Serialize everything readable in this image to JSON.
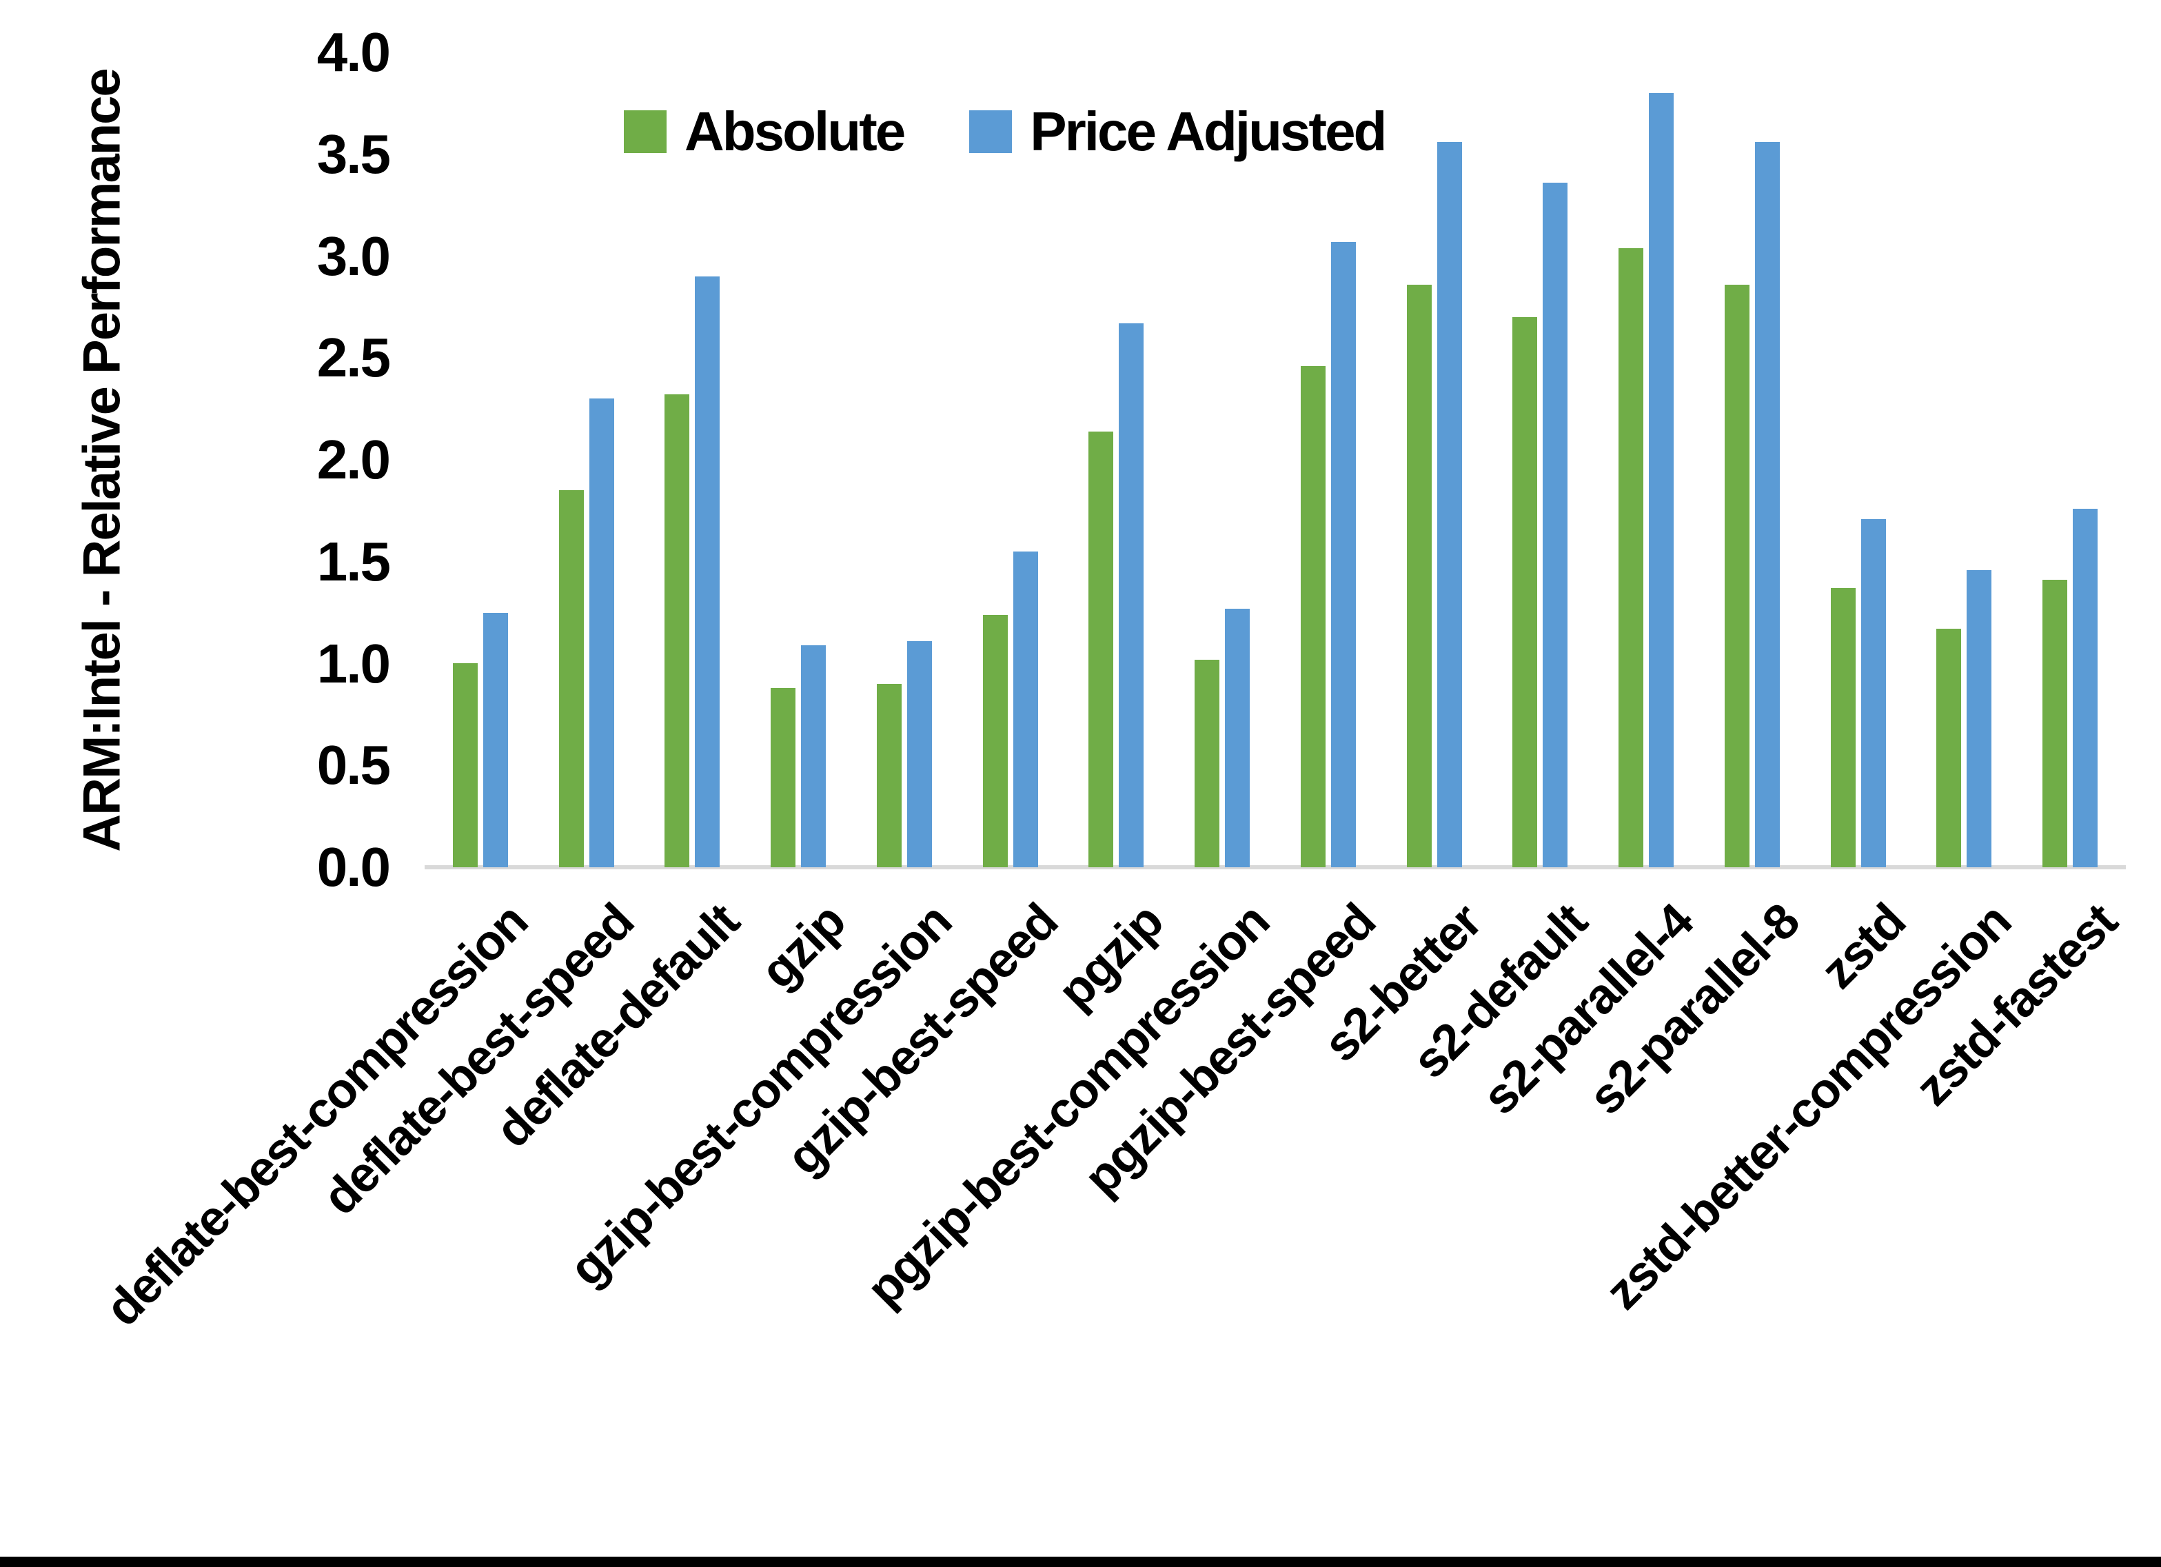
{
  "chart_data": {
    "type": "bar",
    "title": "",
    "xlabel": "",
    "ylabel": "ARM:Intel - Relative Performance",
    "ylim": [
      0.0,
      4.0
    ],
    "y_ticks": [
      "4.0",
      "3.5",
      "3.0",
      "2.5",
      "2.0",
      "1.5",
      "1.0",
      "0.5",
      "0.0"
    ],
    "grid": false,
    "legend_position": "top-center",
    "categories": [
      "deflate-best-compression",
      "deflate-best-speed",
      "deflate-default",
      "gzip",
      "gzip-best-compression",
      "gzip-best-speed",
      "pgzip",
      "pgzip-best-compression",
      "pgzip-best-speed",
      "s2-better",
      "s2-default",
      "s2-parallel-4",
      "s2-parallel-8",
      "zstd",
      "zstd-better-compression",
      "zstd-fastest"
    ],
    "series": [
      {
        "name": "Absolute",
        "color": "#70AD47",
        "values": [
          1.0,
          1.85,
          2.32,
          0.88,
          0.9,
          1.24,
          2.14,
          1.02,
          2.46,
          2.86,
          2.7,
          3.04,
          2.86,
          1.37,
          1.17,
          1.41
        ]
      },
      {
        "name": "Price Adjusted",
        "color": "#5B9BD5",
        "values": [
          1.25,
          2.3,
          2.9,
          1.09,
          1.11,
          1.55,
          2.67,
          1.27,
          3.07,
          3.56,
          3.36,
          3.8,
          3.56,
          1.71,
          1.46,
          1.76
        ]
      }
    ]
  },
  "colors": {
    "background": "#FFFFFF",
    "text": "#000000",
    "baseline": "#D9D9D9",
    "bottom_border": "#000000"
  }
}
